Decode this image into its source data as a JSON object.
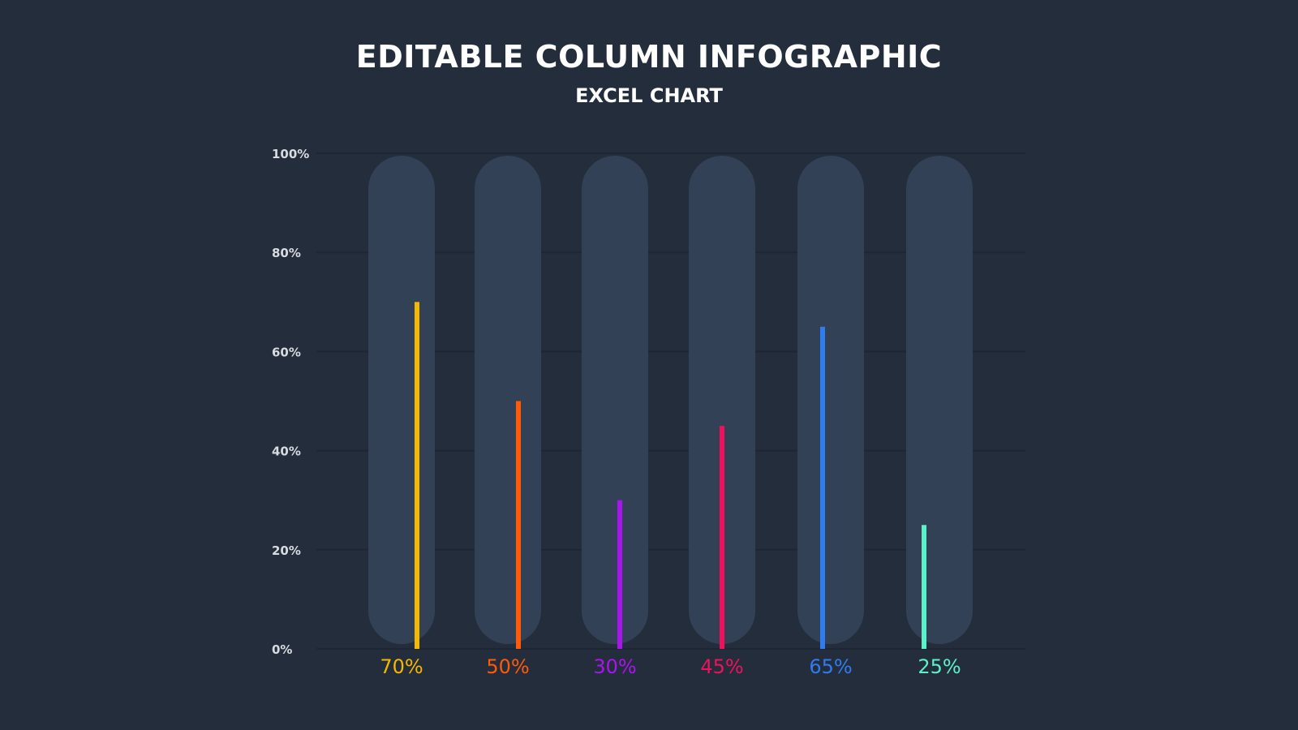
{
  "header": {
    "title": "EDITABLE COLUMN INFOGRAPHIC",
    "subtitle": "EXCEL CHART"
  },
  "colors": {
    "background": "#242d3c",
    "track": "#334156",
    "gridline": "#1e2633",
    "tick_label": "#d8dbe0"
  },
  "chart_data": {
    "type": "bar",
    "title": "EDITABLE COLUMN INFOGRAPHIC",
    "subtitle": "EXCEL CHART",
    "categories": [
      "",
      "",
      "",
      "",
      "",
      ""
    ],
    "values": [
      70,
      50,
      30,
      45,
      65,
      25
    ],
    "data_labels": [
      "70%",
      "50%",
      "30%",
      "45%",
      "65%",
      "25%"
    ],
    "colors": [
      "#f5b800",
      "#ff5a0a",
      "#a815ee",
      "#f0105e",
      "#2f7cf0",
      "#5ef0c8"
    ],
    "ylim": [
      0,
      100
    ],
    "yticks": [
      0,
      20,
      40,
      60,
      80,
      100
    ],
    "ytick_labels": [
      "0%",
      "20%",
      "40%",
      "60%",
      "80%",
      "100%"
    ],
    "xlabel": "",
    "ylabel": "",
    "grid": true,
    "legend": "none"
  }
}
